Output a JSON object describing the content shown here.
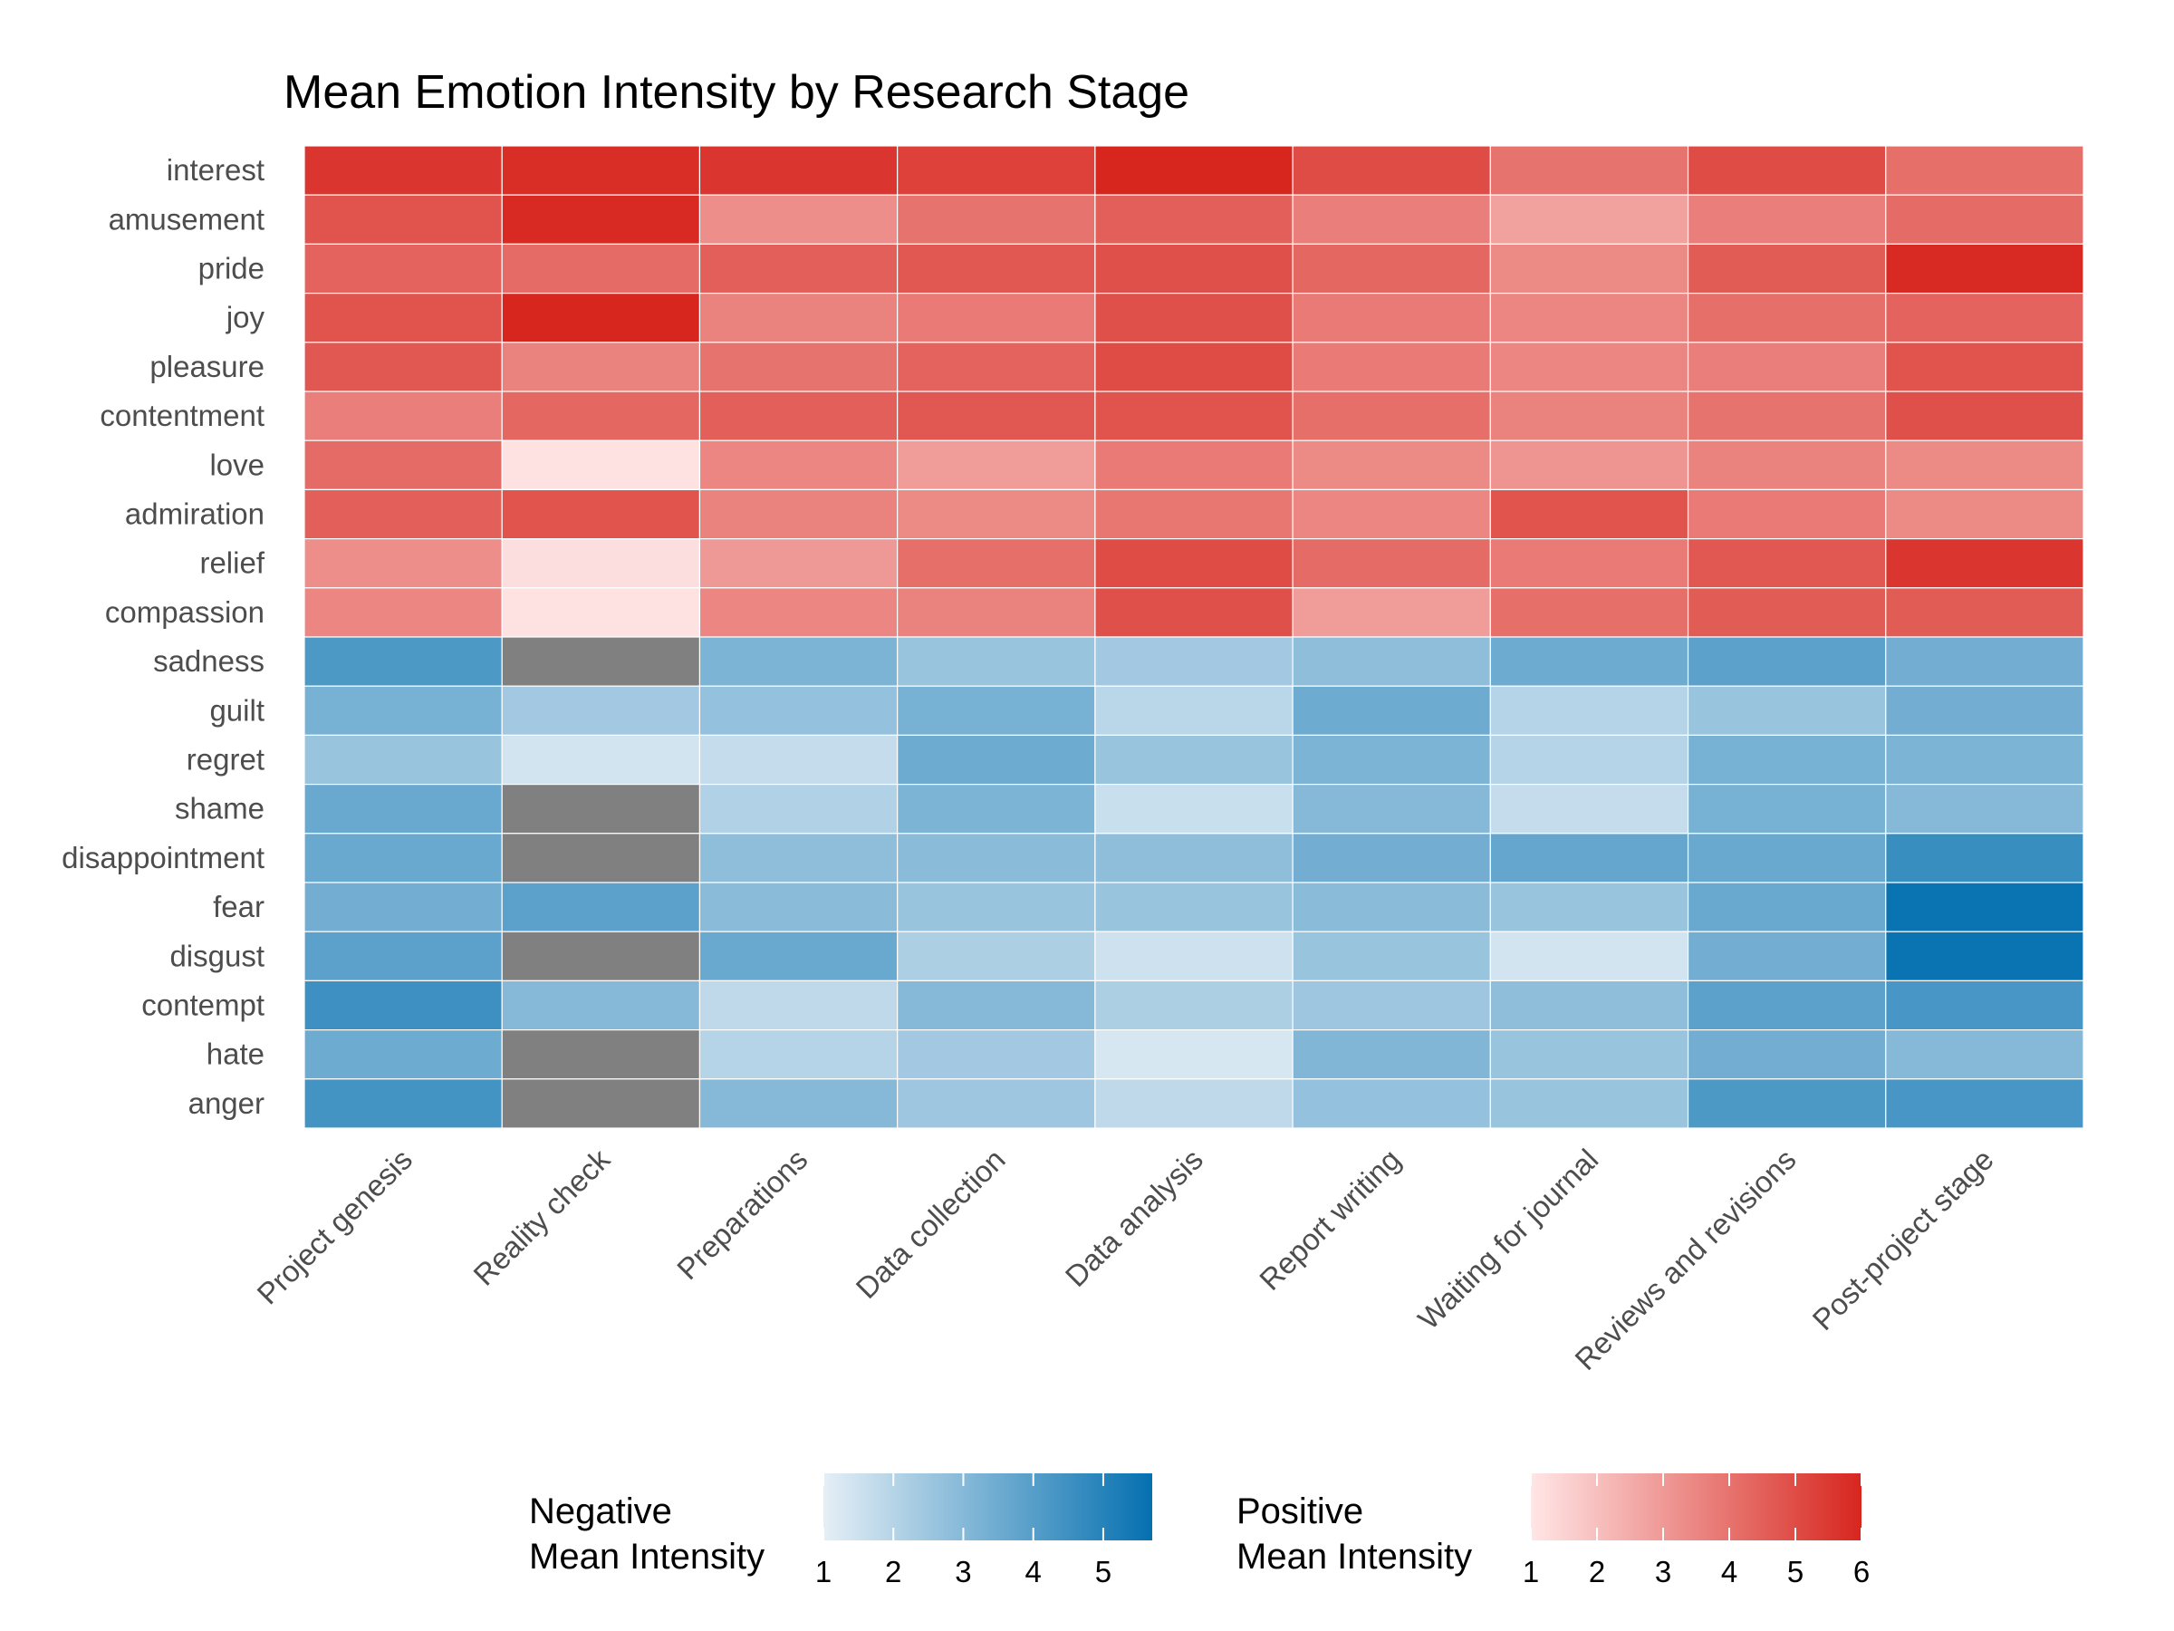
{
  "title": "Mean Emotion Intensity by Research Stage",
  "chart_data": {
    "type": "heatmap",
    "title": "Mean Emotion Intensity by Research Stage",
    "xlabel": "",
    "ylabel": "",
    "x_categories": [
      "Project genesis",
      "Reality check",
      "Preparations",
      "Data collection",
      "Data analysis",
      "Report writing",
      "Waiting for journal",
      "Reviews and revisions",
      "Post-project stage"
    ],
    "y_categories": [
      "interest",
      "amusement",
      "pride",
      "joy",
      "pleasure",
      "contentment",
      "love",
      "admiration",
      "relief",
      "compassion",
      "sadness",
      "guilt",
      "regret",
      "shame",
      "disappointment",
      "fear",
      "disgust",
      "contempt",
      "hate",
      "anger"
    ],
    "positive_emotions": [
      "interest",
      "amusement",
      "pride",
      "joy",
      "pleasure",
      "contentment",
      "love",
      "admiration",
      "relief",
      "compassion"
    ],
    "negative_emotions": [
      "sadness",
      "guilt",
      "regret",
      "shame",
      "disappointment",
      "fear",
      "disgust",
      "contempt",
      "hate",
      "anger"
    ],
    "values": [
      [
        5.6,
        5.8,
        5.6,
        5.3,
        6.0,
        5.0,
        4.0,
        5.0,
        4.1
      ],
      [
        4.8,
        5.9,
        3.3,
        4.0,
        4.5,
        3.7,
        2.8,
        3.7,
        4.2
      ],
      [
        4.4,
        4.2,
        4.5,
        4.7,
        4.9,
        4.3,
        3.4,
        4.6,
        5.9
      ],
      [
        4.8,
        6.0,
        3.6,
        3.8,
        4.9,
        3.8,
        3.5,
        4.1,
        4.4
      ],
      [
        4.7,
        3.6,
        4.0,
        4.4,
        5.0,
        3.8,
        3.5,
        3.7,
        4.8
      ],
      [
        3.7,
        4.3,
        4.5,
        4.7,
        4.8,
        4.1,
        3.6,
        4.0,
        4.9
      ],
      [
        4.2,
        1.1,
        3.5,
        2.9,
        3.8,
        3.4,
        3.1,
        3.6,
        3.4
      ],
      [
        4.5,
        4.8,
        3.6,
        3.4,
        3.9,
        3.5,
        4.8,
        3.8,
        3.4
      ],
      [
        3.3,
        1.2,
        3.0,
        4.1,
        5.0,
        4.2,
        3.8,
        4.7,
        5.6
      ],
      [
        3.5,
        1.1,
        3.5,
        3.6,
        4.9,
        2.9,
        4.1,
        4.6,
        4.6
      ],
      [
        4.2,
        null,
        3.2,
        2.6,
        2.4,
        2.8,
        3.5,
        3.9,
        3.4
      ],
      [
        3.3,
        2.4,
        2.7,
        3.3,
        1.9,
        3.5,
        2.0,
        2.6,
        3.4
      ],
      [
        2.6,
        1.4,
        1.7,
        3.5,
        2.6,
        3.2,
        2.0,
        3.3,
        3.2
      ],
      [
        3.6,
        null,
        2.1,
        3.2,
        1.6,
        3.0,
        1.7,
        3.3,
        3.0
      ],
      [
        3.6,
        null,
        2.8,
        2.9,
        2.8,
        3.4,
        3.7,
        3.6,
        4.6
      ],
      [
        3.4,
        3.9,
        2.9,
        2.6,
        2.6,
        2.9,
        2.6,
        3.6,
        5.6
      ],
      [
        3.9,
        null,
        3.6,
        2.2,
        1.5,
        2.6,
        1.4,
        3.4,
        5.6
      ],
      [
        4.5,
        3.0,
        1.8,
        3.0,
        2.2,
        2.5,
        2.8,
        3.9,
        4.3
      ],
      [
        3.5,
        null,
        2.0,
        2.4,
        1.3,
        3.1,
        2.6,
        3.4,
        3.0
      ],
      [
        4.4,
        null,
        3.0,
        2.5,
        1.8,
        2.7,
        2.6,
        4.2,
        4.3
      ]
    ],
    "missing_color": "#808080",
    "grid": true,
    "legends": [
      {
        "title_line1": "Negative",
        "title_line2": "Mean Intensity",
        "ticks": [
          "1",
          "2",
          "3",
          "4",
          "5"
        ],
        "range": [
          1.0,
          5.7
        ],
        "color_low": "#e5eff6",
        "color_high": "#0570b0",
        "position": "bottom"
      },
      {
        "title_line1": "Positive",
        "title_line2": "Mean Intensity",
        "ticks": [
          "1",
          "2",
          "3",
          "4",
          "5",
          "6"
        ],
        "range": [
          1.0,
          6.0
        ],
        "color_low": "#ffe6e6",
        "color_high": "#d7261e",
        "position": "bottom"
      }
    ]
  }
}
